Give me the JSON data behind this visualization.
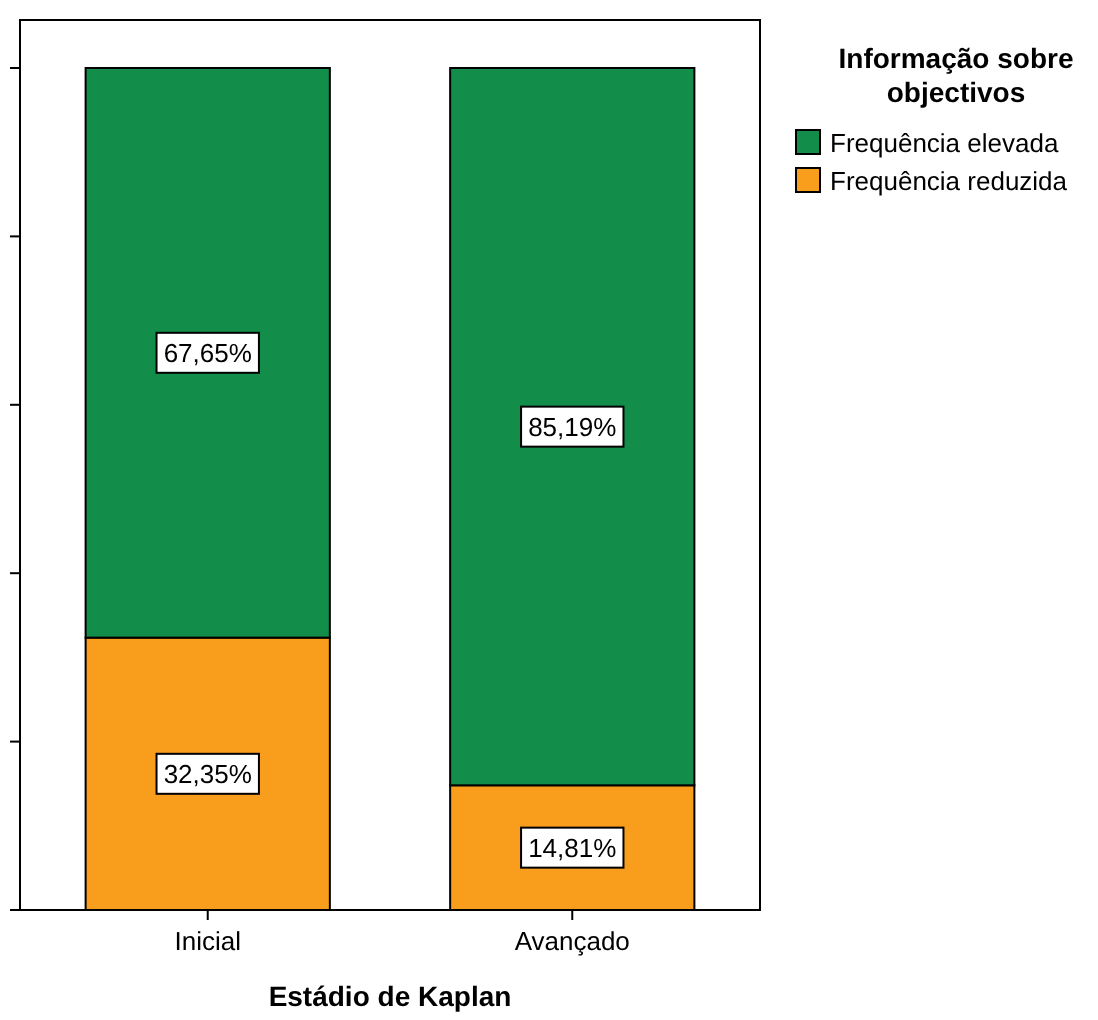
{
  "chart_data": {
    "type": "bar",
    "stacked": true,
    "xlabel": "Estádio de Kaplan",
    "legend_title": "Informação sobre objectivos",
    "categories": [
      "Inicial",
      "Avançado"
    ],
    "series": [
      {
        "name": "Frequência reduzida",
        "color": "#f99d1c",
        "values": [
          32.35,
          14.81
        ],
        "value_labels": [
          "32,35%",
          "14,81%"
        ]
      },
      {
        "name": "Frequência elevada",
        "color": "#138d4a",
        "values": [
          67.65,
          85.19
        ],
        "value_labels": [
          "67,65%",
          "85,19%"
        ]
      }
    ],
    "ylim": [
      0,
      105.7
    ],
    "yticks": [
      {
        "value": 0,
        "label": null
      },
      {
        "value": 20,
        "label": null
      },
      {
        "value": 40,
        "label": null
      },
      {
        "value": 60,
        "label": null
      },
      {
        "value": 80,
        "label": null
      },
      {
        "value": 100,
        "label": null
      }
    ],
    "tick_labels": "x",
    "legend": "right"
  }
}
